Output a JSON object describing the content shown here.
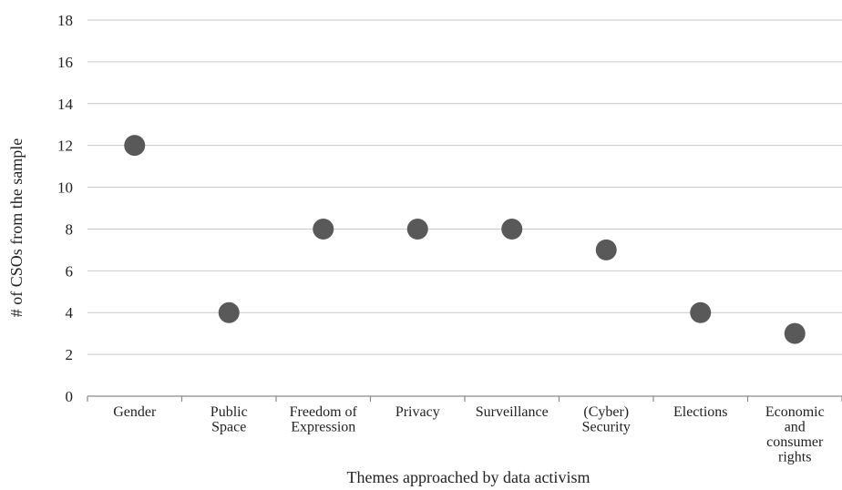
{
  "chart_data": {
    "type": "scatter",
    "title": "",
    "xlabel": "Themes approached by data activism",
    "ylabel": "# of CSOs from the sample",
    "ylim": [
      0,
      18
    ],
    "yticks": [
      "0",
      "2",
      "4",
      "6",
      "8",
      "10",
      "12",
      "14",
      "16",
      "18"
    ],
    "grid": true,
    "legend": "none",
    "marker_color": "#595959",
    "categories": [
      [
        "Gender"
      ],
      [
        "Public",
        "Space"
      ],
      [
        "Freedom of",
        "Expression"
      ],
      [
        "Privacy"
      ],
      [
        "Surveillance"
      ],
      [
        "(Cyber)",
        "Security"
      ],
      [
        "Elections"
      ],
      [
        "Economic",
        "and",
        "consumer",
        "rights"
      ]
    ],
    "values": [
      12,
      4,
      8,
      8,
      8,
      7,
      4,
      3
    ]
  }
}
